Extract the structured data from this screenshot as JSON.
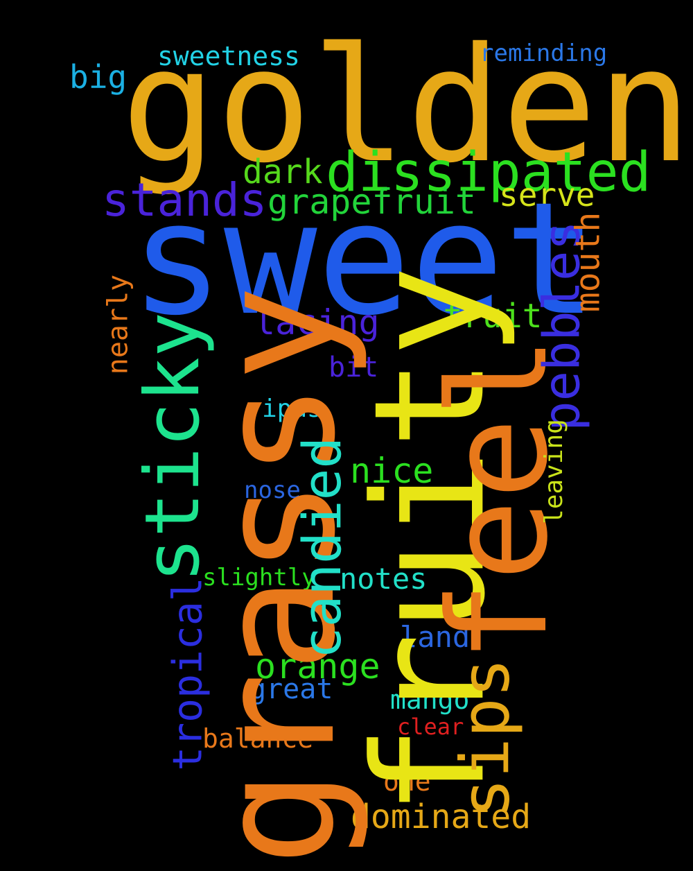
{
  "words": {
    "golden": {
      "text": "golden",
      "color": "#E6A817"
    },
    "sweet": {
      "text": "sweet",
      "color": "#1F5BEA"
    },
    "grassy": {
      "text": "grassy",
      "color": "#E8781A"
    },
    "fruity": {
      "text": "fruity",
      "color": "#E8E515"
    },
    "feel": {
      "text": "feel",
      "color": "#E8781A"
    },
    "sticky": {
      "text": "sticky",
      "color": "#1DE38E"
    },
    "dissipated": {
      "text": "dissipated",
      "color": "#2BE020"
    },
    "stands": {
      "text": "stands",
      "color": "#4A23DA"
    },
    "grapefruit": {
      "text": "grapefruit",
      "color": "#22D43A"
    },
    "dark": {
      "text": "dark",
      "color": "#56D91C"
    },
    "serve": {
      "text": "serve",
      "color": "#D5E31A"
    },
    "sweetness": {
      "text": "sweetness",
      "color": "#22D2E6"
    },
    "reminding": {
      "text": "reminding",
      "color": "#2B78E8"
    },
    "big": {
      "text": "big",
      "color": "#1BB0E3"
    },
    "pebbles": {
      "text": "pebbles",
      "color": "#3A2EE0"
    },
    "mouth": {
      "text": "mouth",
      "color": "#E8781A"
    },
    "nearly": {
      "text": "nearly",
      "color": "#E8781A"
    },
    "lacing": {
      "text": "lacing",
      "color": "#4A23DA"
    },
    "fruit": {
      "text": "fruit",
      "color": "#4CE01C"
    },
    "bit": {
      "text": "bit",
      "color": "#4A23DA"
    },
    "ipas": {
      "text": "ipas",
      "color": "#22D2E6"
    },
    "nice": {
      "text": "nice",
      "color": "#2BE020"
    },
    "candied": {
      "text": "candied",
      "color": "#22E0C8"
    },
    "leaving": {
      "text": "leaving",
      "color": "#C9E31A"
    },
    "nose": {
      "text": "nose",
      "color": "#2B66E0"
    },
    "slightly": {
      "text": "slightly",
      "color": "#2BE020"
    },
    "notes": {
      "text": "notes",
      "color": "#22E0C8"
    },
    "tropical": {
      "text": "tropical",
      "color": "#2B2EE0"
    },
    "land": {
      "text": "land",
      "color": "#2B66E0"
    },
    "orange": {
      "text": "orange",
      "color": "#2BE020"
    },
    "great": {
      "text": "great",
      "color": "#2B78E8"
    },
    "mango": {
      "text": "mango",
      "color": "#22E0C8"
    },
    "clear": {
      "text": "clear",
      "color": "#E02020"
    },
    "balance": {
      "text": "balance",
      "color": "#E8781A"
    },
    "sips": {
      "text": "sips",
      "color": "#E6A817"
    },
    "one": {
      "text": "one",
      "color": "#E8781A"
    },
    "dominated": {
      "text": "dominated",
      "color": "#E6A817"
    }
  }
}
